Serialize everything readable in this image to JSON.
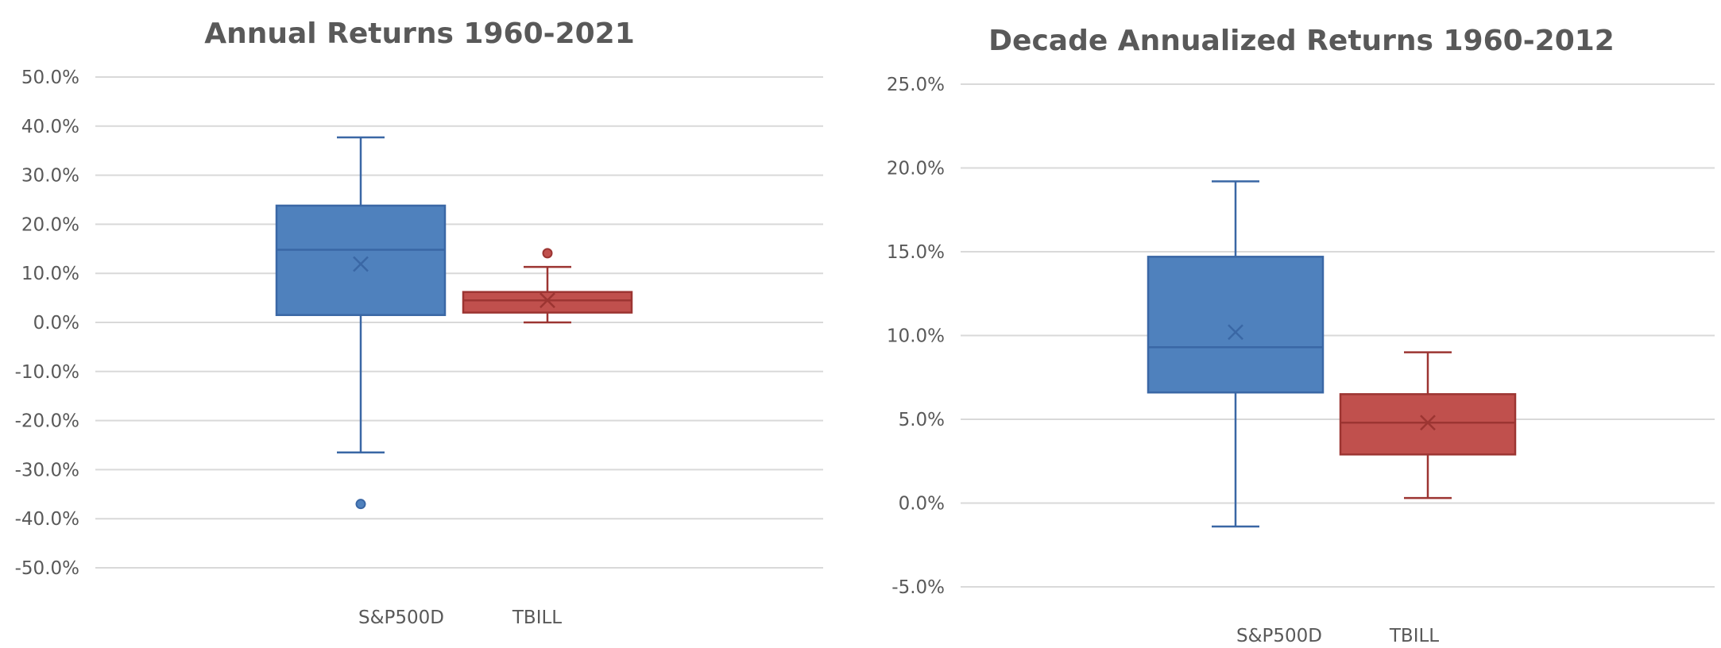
{
  "chart_data": [
    {
      "type": "box",
      "title": "Annual Returns 1960-2021",
      "ylim": [
        -0.5,
        0.5
      ],
      "ytick_step": 0.1,
      "ytick_labels": [
        "50.0%",
        "40.0%",
        "30.0%",
        "20.0%",
        "10.0%",
        "0.0%",
        "-10.0%",
        "-20.0%",
        "-30.0%",
        "-40.0%",
        "-50.0%"
      ],
      "grid": true,
      "series": [
        {
          "name": "S&P500D",
          "color": "#4f81bd",
          "stroke": "#3a67a5",
          "min": -0.265,
          "q1": 0.015,
          "median": 0.148,
          "q3": 0.238,
          "max": 0.377,
          "mean": 0.119,
          "outliers": [
            -0.37
          ]
        },
        {
          "name": "TBILL",
          "color": "#c0504d",
          "stroke": "#9c3532",
          "min": 0.0,
          "q1": 0.02,
          "median": 0.045,
          "q3": 0.062,
          "max": 0.113,
          "mean": 0.045,
          "outliers": [
            0.141
          ]
        }
      ]
    },
    {
      "type": "box",
      "title": "Decade Annualized Returns 1960-2012",
      "ylim": [
        -0.05,
        0.25
      ],
      "ytick_step": 0.05,
      "ytick_labels": [
        "25.0%",
        "20.0%",
        "15.0%",
        "10.0%",
        "5.0%",
        "0.0%",
        "-5.0%"
      ],
      "grid": true,
      "series": [
        {
          "name": "S&P500D",
          "color": "#4f81bd",
          "stroke": "#3a67a5",
          "min": -0.014,
          "q1": 0.066,
          "median": 0.093,
          "q3": 0.147,
          "max": 0.192,
          "mean": 0.102,
          "outliers": []
        },
        {
          "name": "TBILL",
          "color": "#c0504d",
          "stroke": "#9c3532",
          "min": 0.003,
          "q1": 0.029,
          "median": 0.048,
          "q3": 0.065,
          "max": 0.09,
          "mean": 0.048,
          "outliers": []
        }
      ]
    }
  ]
}
